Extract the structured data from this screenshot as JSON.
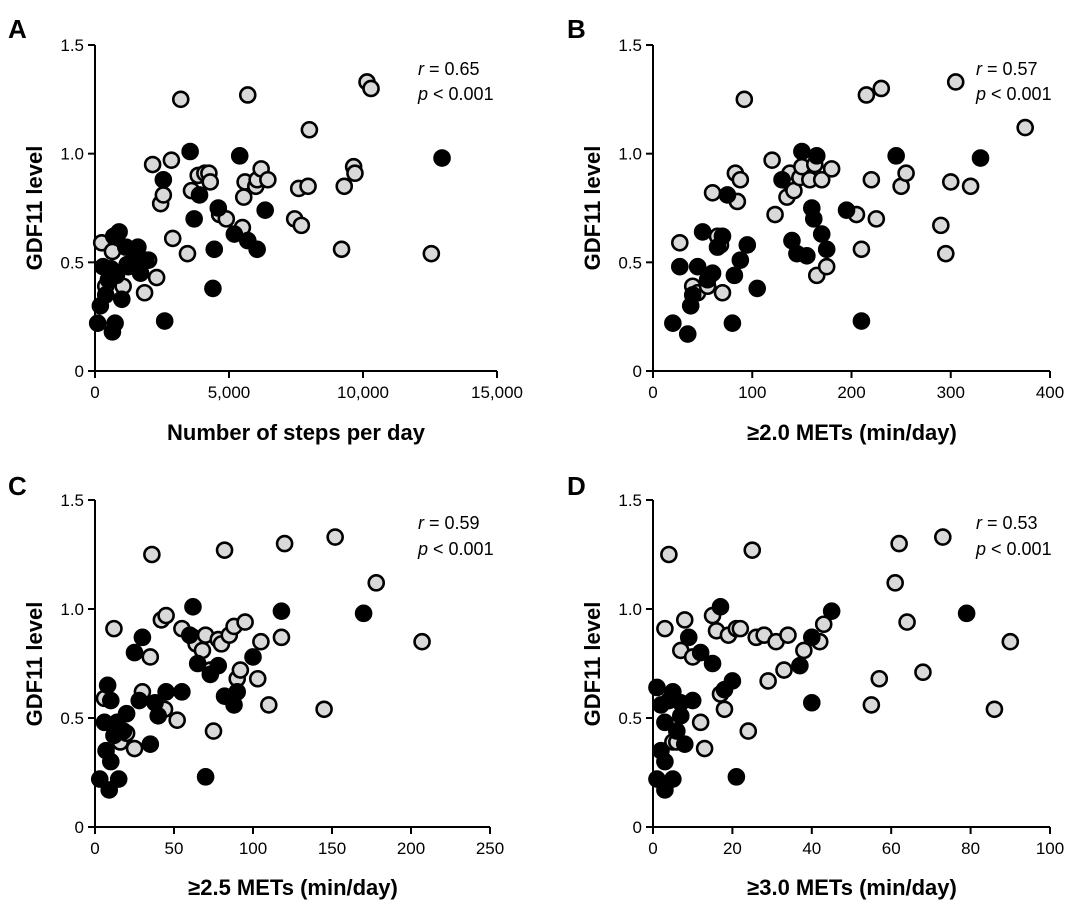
{
  "colors": {
    "open_fill": "#d9d9d9",
    "closed_fill": "#000000",
    "stroke": "#000000"
  },
  "chart_data": [
    {
      "panel": "A",
      "type": "scatter",
      "xlabel": "Number of steps per day",
      "ylabel": "GDF11 level",
      "xlim": [
        0,
        15000
      ],
      "ylim": [
        0,
        1.5
      ],
      "xticks": [
        0,
        5000,
        10000,
        15000
      ],
      "xtick_labels": [
        "0",
        "5,000",
        "10,000",
        "15,000"
      ],
      "yticks": [
        0,
        0.5,
        1.0,
        1.5
      ],
      "ytick_labels": [
        "0",
        "0.5",
        "1.0",
        "1.5"
      ],
      "stat_r_sym": "r",
      "stat_r_val": " = 0.65",
      "stat_p_sym": "p",
      "stat_p_val": " < 0.001",
      "series": [
        {
          "marker": "open-gray",
          "x": [
            250,
            400,
            650,
            1050,
            1250,
            1550,
            1850,
            2000,
            2150,
            2300,
            2450,
            2550,
            2850,
            2900,
            3200,
            3450,
            3600,
            3850,
            4100,
            4250,
            4300,
            4650,
            4900,
            5600,
            5500,
            5550,
            5700,
            6000,
            6050,
            6200,
            6450,
            7450,
            7600,
            7700,
            7950,
            8000,
            9200,
            9300,
            9650,
            9700,
            10150,
            10300,
            12550
          ],
          "y": [
            0.59,
            0.39,
            0.55,
            0.39,
            0.48,
            0.55,
            0.36,
            0.51,
            0.95,
            0.43,
            0.77,
            0.81,
            0.97,
            0.61,
            1.25,
            0.54,
            0.83,
            0.9,
            0.91,
            0.91,
            0.87,
            0.72,
            0.7,
            0.87,
            0.66,
            0.8,
            1.27,
            0.85,
            0.88,
            0.93,
            0.88,
            0.7,
            0.84,
            0.67,
            0.85,
            1.11,
            0.56,
            0.85,
            0.94,
            0.91,
            1.33,
            1.3,
            0.54
          ]
        },
        {
          "marker": "filled-black",
          "x": [
            100,
            200,
            300,
            400,
            500,
            600,
            650,
            700,
            750,
            800,
            900,
            1000,
            1150,
            1200,
            1500,
            1600,
            1700,
            1900,
            2550,
            2600,
            3550,
            3700,
            3900,
            4400,
            4450,
            4600,
            5200,
            5400,
            5700,
            6050,
            6350,
            12950
          ],
          "y": [
            0.22,
            0.3,
            0.48,
            0.35,
            0.42,
            0.47,
            0.18,
            0.62,
            0.22,
            0.44,
            0.64,
            0.33,
            0.57,
            0.49,
            0.52,
            0.57,
            0.45,
            0.51,
            0.88,
            0.23,
            1.01,
            0.7,
            0.81,
            0.38,
            0.56,
            0.75,
            0.63,
            0.99,
            0.6,
            0.56,
            0.74,
            0.98
          ]
        }
      ]
    },
    {
      "panel": "B",
      "type": "scatter",
      "xlabel": "≥2.0 METs (min/day)",
      "ylabel": "GDF11 level",
      "xlim": [
        0,
        400
      ],
      "ylim": [
        0,
        1.5
      ],
      "xticks": [
        0,
        100,
        200,
        300,
        400
      ],
      "xtick_labels": [
        "0",
        "100",
        "200",
        "300",
        "400"
      ],
      "yticks": [
        0,
        0.5,
        1.0,
        1.5
      ],
      "ytick_labels": [
        "0",
        "0.5",
        "1.0",
        "1.5"
      ],
      "stat_r_sym": "r",
      "stat_r_val": " = 0.57",
      "stat_p_sym": "p",
      "stat_p_val": " < 0.001",
      "series": [
        {
          "marker": "open-gray",
          "x": [
            27,
            40,
            45,
            55,
            60,
            65,
            68,
            70,
            83,
            85,
            88,
            92,
            120,
            123,
            135,
            138,
            140,
            142,
            148,
            150,
            158,
            163,
            165,
            170,
            175,
            180,
            205,
            210,
            215,
            220,
            225,
            230,
            250,
            255,
            290,
            295,
            300,
            320,
            305,
            375
          ],
          "y": [
            0.59,
            0.39,
            0.36,
            0.39,
            0.82,
            0.62,
            0.58,
            0.36,
            0.91,
            0.78,
            0.88,
            1.25,
            0.97,
            0.72,
            0.8,
            0.91,
            0.85,
            0.83,
            0.89,
            0.94,
            0.88,
            0.95,
            0.44,
            0.88,
            0.48,
            0.93,
            0.72,
            0.56,
            1.27,
            0.88,
            0.7,
            1.3,
            0.85,
            0.91,
            0.67,
            0.54,
            0.87,
            0.85,
            1.33,
            1.12
          ]
        },
        {
          "marker": "filled-black",
          "x": [
            20,
            27,
            35,
            38,
            40,
            45,
            50,
            55,
            60,
            65,
            70,
            75,
            80,
            82,
            88,
            95,
            105,
            130,
            140,
            145,
            150,
            155,
            160,
            162,
            165,
            170,
            175,
            195,
            210,
            245,
            330
          ],
          "y": [
            0.22,
            0.48,
            0.17,
            0.3,
            0.35,
            0.48,
            0.64,
            0.42,
            0.45,
            0.57,
            0.62,
            0.81,
            0.22,
            0.44,
            0.51,
            0.58,
            0.38,
            0.88,
            0.6,
            0.54,
            1.01,
            0.53,
            0.75,
            0.7,
            0.99,
            0.63,
            0.56,
            0.74,
            0.23,
            0.99,
            0.98
          ]
        }
      ]
    },
    {
      "panel": "C",
      "type": "scatter",
      "xlabel": "≥2.5 METs (min/day)",
      "ylabel": "GDF11 level",
      "xlim": [
        0,
        250
      ],
      "ylim": [
        0,
        1.5
      ],
      "xticks": [
        0,
        50,
        100,
        150,
        200,
        250
      ],
      "xtick_labels": [
        "0",
        "50",
        "100",
        "150",
        "200",
        "250"
      ],
      "yticks": [
        0,
        0.5,
        1.0,
        1.5
      ],
      "ytick_labels": [
        "0",
        "0.5",
        "1.0",
        "1.5"
      ],
      "stat_r_sym": "r",
      "stat_r_val": " = 0.59",
      "stat_p_sym": "p",
      "stat_p_val": " < 0.001",
      "series": [
        {
          "marker": "open-gray",
          "x": [
            6,
            12,
            16,
            20,
            25,
            30,
            35,
            36,
            42,
            44,
            45,
            52,
            55,
            62,
            64,
            68,
            70,
            73,
            75,
            78,
            80,
            82,
            85,
            88,
            90,
            92,
            95,
            103,
            105,
            110,
            118,
            120,
            145,
            152,
            178,
            207
          ],
          "y": [
            0.59,
            0.91,
            0.39,
            0.43,
            0.36,
            0.62,
            0.78,
            1.25,
            0.95,
            0.54,
            0.97,
            0.49,
            0.91,
            0.87,
            0.84,
            0.81,
            0.88,
            0.72,
            0.44,
            0.86,
            0.84,
            1.27,
            0.88,
            0.92,
            0.68,
            0.72,
            0.94,
            0.68,
            0.85,
            0.56,
            0.87,
            1.3,
            0.54,
            1.33,
            1.12,
            0.85
          ]
        },
        {
          "marker": "filled-black",
          "x": [
            3,
            6,
            7,
            8,
            9,
            10,
            10,
            12,
            14,
            15,
            18,
            20,
            25,
            28,
            30,
            35,
            38,
            40,
            45,
            55,
            60,
            62,
            65,
            70,
            73,
            78,
            82,
            88,
            90,
            100,
            118,
            170
          ],
          "y": [
            0.22,
            0.48,
            0.35,
            0.65,
            0.17,
            0.3,
            0.58,
            0.42,
            0.48,
            0.22,
            0.44,
            0.52,
            0.8,
            0.58,
            0.87,
            0.38,
            0.57,
            0.51,
            0.62,
            0.62,
            0.88,
            1.01,
            0.75,
            0.23,
            0.7,
            0.74,
            0.6,
            0.56,
            0.62,
            0.78,
            0.99,
            0.98
          ]
        }
      ]
    },
    {
      "panel": "D",
      "type": "scatter",
      "xlabel": "≥3.0 METs (min/day)",
      "ylabel": "GDF11 level",
      "xlim": [
        0,
        100
      ],
      "ylim": [
        0,
        1.5
      ],
      "xticks": [
        0,
        20,
        40,
        60,
        80,
        100
      ],
      "xtick_labels": [
        "0",
        "20",
        "40",
        "60",
        "80",
        "100"
      ],
      "yticks": [
        0,
        0.5,
        1.0,
        1.5
      ],
      "ytick_labels": [
        "0",
        "0.5",
        "1.0",
        "1.5"
      ],
      "stat_r_sym": "r",
      "stat_r_val": " = 0.53",
      "stat_p_sym": "p",
      "stat_p_val": " < 0.001",
      "series": [
        {
          "marker": "open-gray",
          "x": [
            3,
            4,
            5,
            6,
            7,
            8,
            10,
            12,
            13,
            15,
            16,
            17,
            18,
            19,
            21,
            22,
            24,
            25,
            26,
            28,
            29,
            31,
            33,
            34,
            38,
            42,
            43,
            55,
            57,
            61,
            62,
            64,
            68,
            73,
            86,
            90
          ],
          "y": [
            0.91,
            1.25,
            0.39,
            0.39,
            0.81,
            0.95,
            0.78,
            0.48,
            0.36,
            0.97,
            0.9,
            0.61,
            0.54,
            0.88,
            0.91,
            0.91,
            0.44,
            1.27,
            0.87,
            0.88,
            0.67,
            0.85,
            0.72,
            0.88,
            0.81,
            0.85,
            0.93,
            0.56,
            0.68,
            1.12,
            1.3,
            0.94,
            0.71,
            1.33,
            0.54,
            0.85
          ]
        },
        {
          "marker": "filled-black",
          "x": [
            1,
            1,
            2,
            2,
            3,
            3,
            3,
            4,
            5,
            5,
            6,
            7,
            7,
            8,
            9,
            10,
            12,
            15,
            17,
            18,
            20,
            21,
            37,
            40,
            40,
            45,
            79
          ],
          "y": [
            0.22,
            0.64,
            0.35,
            0.56,
            0.17,
            0.48,
            0.3,
            0.58,
            0.62,
            0.22,
            0.44,
            0.51,
            0.57,
            0.38,
            0.87,
            0.58,
            0.8,
            0.75,
            1.01,
            0.63,
            0.67,
            0.23,
            0.74,
            0.87,
            0.57,
            0.99,
            0.98
          ]
        }
      ]
    }
  ]
}
